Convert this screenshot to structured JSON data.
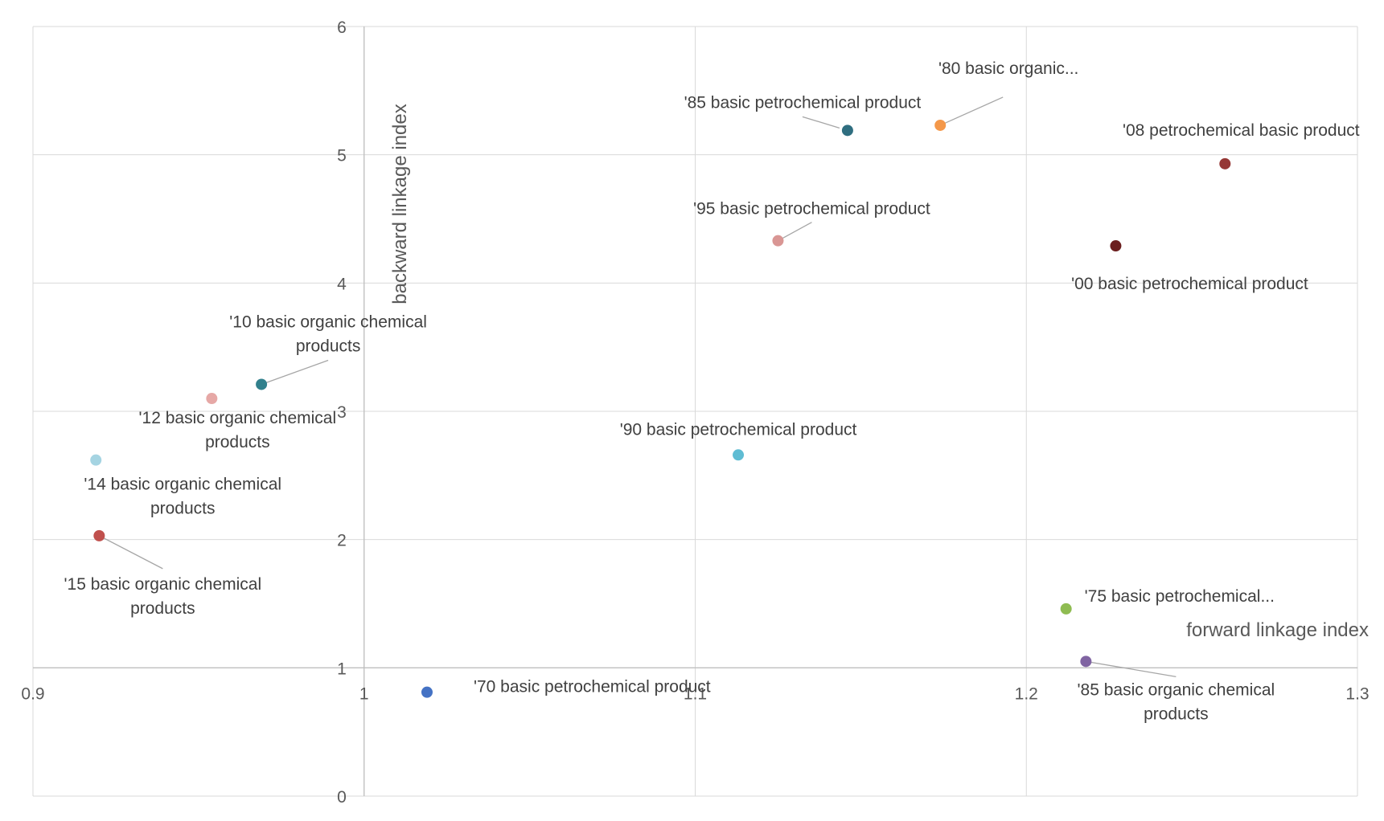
{
  "chart_data": {
    "type": "scatter",
    "title": "",
    "xlabel": "forward linkage index",
    "ylabel": "backward linkage index",
    "xlim": [
      0.9,
      1.3
    ],
    "ylim": [
      0,
      6
    ],
    "x_ticks": [
      "0.9",
      "1",
      "1.1",
      "1.2",
      "1.3"
    ],
    "y_ticks": [
      "0",
      "1",
      "2",
      "3",
      "4",
      "5",
      "6"
    ],
    "grid": true,
    "legend": "none",
    "points": [
      {
        "label": "'70 basic petrochemical product",
        "x": 1.019,
        "y": 0.81,
        "color": "#4472c4"
      },
      {
        "label": "'75 basic petrochemical...",
        "x": 1.212,
        "y": 1.46,
        "color": "#8fbc52"
      },
      {
        "label": "'80 basic organic...",
        "x": 1.174,
        "y": 5.23,
        "color": "#f4984a"
      },
      {
        "label": "'85 basic petrochemical product",
        "x": 1.146,
        "y": 5.19,
        "color": "#2f6e80"
      },
      {
        "label": "'85 basic organic chemical products",
        "x": 1.218,
        "y": 1.05,
        "color": "#8064a2"
      },
      {
        "label": "'90 basic petrochemical product",
        "x": 1.113,
        "y": 2.66,
        "color": "#5fbcd3"
      },
      {
        "label": "'95 basic petrochemical product",
        "x": 1.125,
        "y": 4.33,
        "color": "#d99694"
      },
      {
        "label": "'00 basic petrochemical product",
        "x": 1.227,
        "y": 4.29,
        "color": "#6b1e1e"
      },
      {
        "label": "'08 petrochemical basic product",
        "x": 1.26,
        "y": 4.93,
        "color": "#953735"
      },
      {
        "label": "'10 basic organic chemical products",
        "x": 0.969,
        "y": 3.21,
        "color": "#31808c"
      },
      {
        "label": "'12 basic organic chemical products",
        "x": 0.954,
        "y": 3.1,
        "color": "#e6a8a6"
      },
      {
        "label": "'14 basic organic chemical products",
        "x": 0.919,
        "y": 2.62,
        "color": "#a5d4e2"
      },
      {
        "label": "'15 basic organic chemical products",
        "x": 0.92,
        "y": 2.03,
        "color": "#c0504d"
      }
    ]
  }
}
